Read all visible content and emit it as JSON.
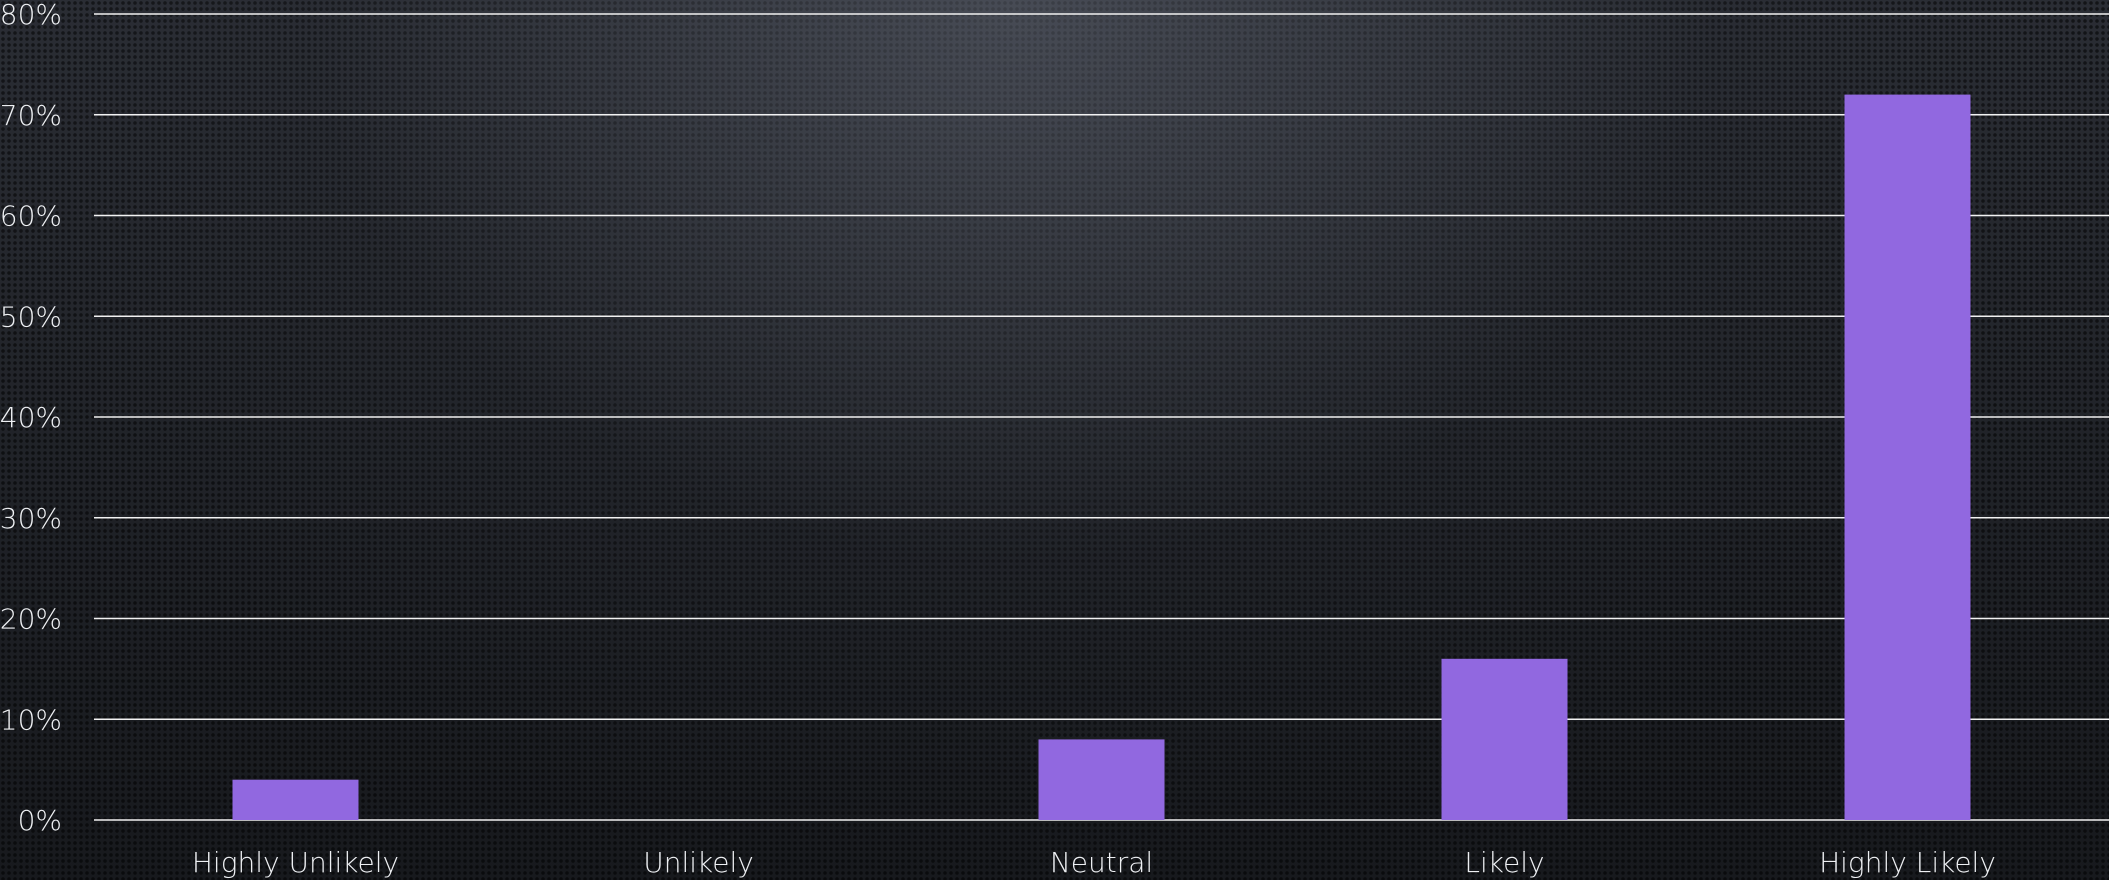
{
  "chart_data": {
    "type": "bar",
    "categories": [
      "Highly Unlikely",
      "Unlikely",
      "Neutral",
      "Likely",
      "Highly Likely"
    ],
    "values": [
      4,
      0,
      8,
      16,
      72
    ],
    "y_ticks": [
      "0%",
      "10%",
      "20%",
      "30%",
      "40%",
      "50%",
      "60%",
      "70%",
      "80%"
    ],
    "ylim": [
      0,
      80
    ],
    "grid": true,
    "legend": "none",
    "bar_color": "#9168e0",
    "gridline_color": "#f2f2f2",
    "text_color": "#eef0f3"
  }
}
